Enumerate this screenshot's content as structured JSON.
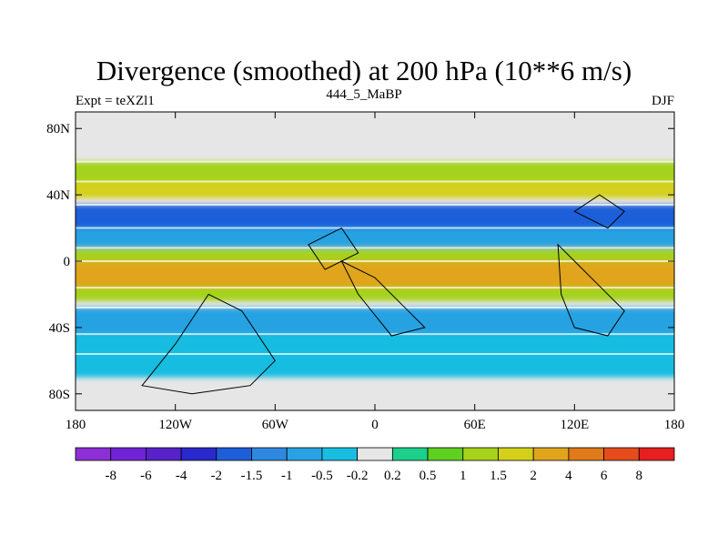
{
  "chart_data": {
    "type": "heatmap",
    "title": "Divergence (smoothed) at 200 hPa (10**6 m/s)",
    "left_string": "Expt = teXZl1",
    "center_string": "444_5_MaBP",
    "right_string": "DJF",
    "x_ticks": [
      {
        "value": -180,
        "label": "180"
      },
      {
        "value": -120,
        "label": "120W"
      },
      {
        "value": -60,
        "label": "60W"
      },
      {
        "value": 0,
        "label": "0"
      },
      {
        "value": 60,
        "label": "60E"
      },
      {
        "value": 120,
        "label": "120E"
      },
      {
        "value": 180,
        "label": "180"
      }
    ],
    "y_ticks": [
      {
        "value": 80,
        "label": "80N"
      },
      {
        "value": 40,
        "label": "40N"
      },
      {
        "value": 0,
        "label": "0"
      },
      {
        "value": -40,
        "label": "40S"
      },
      {
        "value": -80,
        "label": "80S"
      }
    ],
    "xlim": [
      -180,
      180
    ],
    "ylim": [
      -90,
      90
    ],
    "colorbar": {
      "colors": [
        "#8c2fd6",
        "#7124d6",
        "#5722c9",
        "#2a29cc",
        "#1f5ed9",
        "#2f88e0",
        "#28a2e2",
        "#19bde0",
        "#e6e6e6",
        "#1ccf8a",
        "#5fcf20",
        "#a5d21a",
        "#d4d01a",
        "#e0a51d",
        "#e07a1a",
        "#e44c1c",
        "#e61f1f"
      ],
      "labels": [
        "-8",
        "-6",
        "-4",
        "-2",
        "-1.5",
        "-1",
        "-0.5",
        "-0.2",
        "0.2",
        "0.5",
        "1",
        "1.5",
        "2",
        "4",
        "6",
        "8"
      ]
    },
    "zonal_bands": [
      {
        "lat_min": 48,
        "lat_max": 60,
        "value": 1
      },
      {
        "lat_min": 38,
        "lat_max": 48,
        "value": 1.5
      },
      {
        "lat_min": 20,
        "lat_max": 34,
        "value": -2
      },
      {
        "lat_min": 8,
        "lat_max": 20,
        "value": -1
      },
      {
        "lat_min": 0,
        "lat_max": 8,
        "value": 1
      },
      {
        "lat_min": -16,
        "lat_max": 0,
        "value": 2
      },
      {
        "lat_min": -24,
        "lat_max": -16,
        "value": 1
      },
      {
        "lat_min": -44,
        "lat_max": -28,
        "value": -1
      },
      {
        "lat_min": -56,
        "lat_max": -44,
        "value": -0.5
      },
      {
        "lat_min": -70,
        "lat_max": -56,
        "value": -0.5
      }
    ]
  }
}
